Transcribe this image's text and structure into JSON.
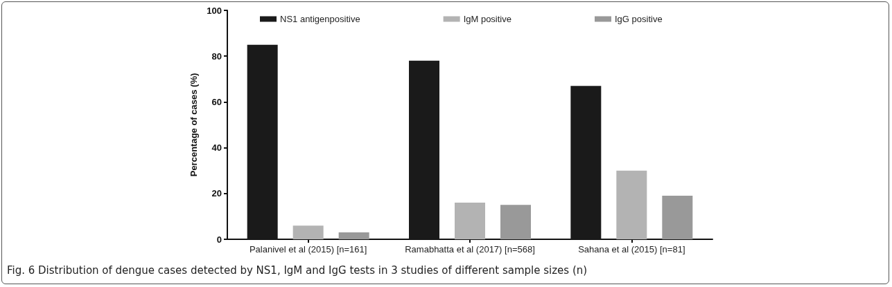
{
  "chart_data": {
    "type": "bar",
    "categories": [
      "Palanivel et al (2015) [n=161]",
      "Ramabhatta et al (2017) [n=568]",
      "Sahana et al (2015) [n=81]"
    ],
    "series": [
      {
        "name": "NS1 antigenpositive",
        "color": "#1a1a1a",
        "values": [
          85,
          78,
          67
        ]
      },
      {
        "name": "IgM positive",
        "color": "#b3b3b3",
        "values": [
          6,
          16,
          30
        ]
      },
      {
        "name": "IgG positive",
        "color": "#999999",
        "values": [
          3,
          15,
          19
        ]
      }
    ],
    "ylabel": "Percentage of cases (%)",
    "ylim": [
      0,
      100
    ],
    "yticks": [
      0,
      20,
      40,
      60,
      80,
      100
    ],
    "grid": false,
    "legend": "top",
    "annotations": [
      "Fig. 6 Distribution of dengue cases detected by NS1, IgM and IgG tests in 3 studies of different sample sizes (n)"
    ]
  }
}
